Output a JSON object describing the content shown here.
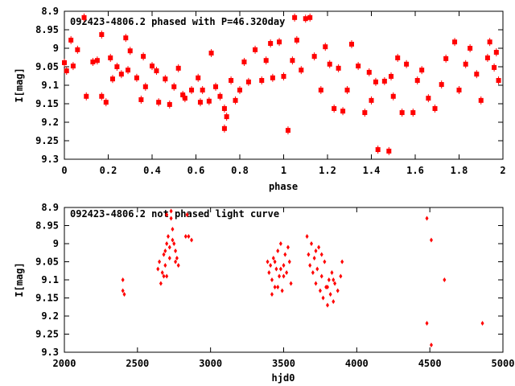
{
  "colors": {
    "points": "#ff0000",
    "axes": "#000000"
  },
  "chart_data": [
    {
      "type": "scatter",
      "title": "092423-4806.2 phased with P=46.320day",
      "xlabel": "phase",
      "ylabel": "I[mag]",
      "xlim": [
        0,
        2
      ],
      "ylim": [
        9.3,
        8.9
      ],
      "y_inverted": true,
      "xticks": [
        "0",
        "0.2",
        "0.4",
        "0.6",
        "0.8",
        "1",
        "1.2",
        "1.4",
        "1.6",
        "1.8",
        "2"
      ],
      "yticks": [
        "8.9",
        "8.95",
        "9",
        "9.05",
        "9.1",
        "9.15",
        "9.2",
        "9.25",
        "9.3"
      ],
      "points": [
        [
          0.0,
          9.039
        ],
        [
          0.01,
          9.061
        ],
        [
          0.03,
          8.978
        ],
        [
          0.04,
          9.048
        ],
        [
          0.06,
          9.004
        ],
        [
          0.09,
          8.917
        ],
        [
          0.1,
          9.13
        ],
        [
          0.13,
          9.037
        ],
        [
          0.15,
          9.033
        ],
        [
          0.17,
          9.13
        ],
        [
          0.17,
          8.963
        ],
        [
          0.19,
          9.146
        ],
        [
          0.21,
          9.026
        ],
        [
          0.22,
          9.083
        ],
        [
          0.24,
          9.05
        ],
        [
          0.26,
          9.07
        ],
        [
          0.28,
          8.972
        ],
        [
          0.29,
          9.059
        ],
        [
          0.3,
          9.007
        ],
        [
          0.33,
          9.08
        ],
        [
          0.35,
          9.139
        ],
        [
          0.36,
          9.022
        ],
        [
          0.37,
          9.104
        ],
        [
          0.4,
          9.048
        ],
        [
          0.42,
          9.061
        ],
        [
          0.43,
          9.146
        ],
        [
          0.46,
          9.083
        ],
        [
          0.48,
          9.152
        ],
        [
          0.5,
          9.104
        ],
        [
          0.52,
          9.054
        ],
        [
          0.54,
          9.126
        ],
        [
          0.55,
          9.135
        ],
        [
          0.58,
          9.113
        ],
        [
          0.61,
          9.08
        ],
        [
          0.62,
          9.146
        ],
        [
          0.63,
          9.113
        ],
        [
          0.66,
          9.143
        ],
        [
          0.67,
          9.013
        ],
        [
          0.69,
          9.104
        ],
        [
          0.71,
          9.13
        ],
        [
          0.73,
          9.163
        ],
        [
          0.73,
          9.217
        ],
        [
          0.74,
          9.185
        ],
        [
          0.76,
          9.087
        ],
        [
          0.78,
          9.141
        ],
        [
          0.8,
          9.113
        ],
        [
          0.82,
          9.037
        ],
        [
          0.84,
          9.091
        ],
        [
          0.87,
          9.004
        ],
        [
          0.9,
          9.087
        ],
        [
          0.92,
          9.033
        ],
        [
          0.94,
          8.987
        ],
        [
          0.95,
          9.08
        ],
        [
          0.98,
          8.983
        ],
        [
          1.0,
          9.076
        ],
        [
          1.02,
          9.222
        ],
        [
          1.04,
          9.033
        ],
        [
          1.05,
          8.917
        ],
        [
          1.06,
          8.978
        ],
        [
          1.08,
          9.059
        ],
        [
          1.1,
          8.92
        ],
        [
          1.12,
          8.917
        ],
        [
          1.14,
          9.022
        ],
        [
          1.17,
          9.113
        ],
        [
          1.19,
          8.996
        ],
        [
          1.21,
          9.043
        ],
        [
          1.23,
          9.163
        ],
        [
          1.25,
          9.054
        ],
        [
          1.27,
          9.17
        ],
        [
          1.29,
          9.113
        ],
        [
          1.31,
          8.989
        ],
        [
          1.34,
          9.048
        ],
        [
          1.37,
          9.174
        ],
        [
          1.39,
          9.065
        ],
        [
          1.4,
          9.141
        ],
        [
          1.42,
          9.091
        ],
        [
          1.43,
          9.274
        ],
        [
          1.46,
          9.089
        ],
        [
          1.48,
          9.278
        ],
        [
          1.49,
          9.076
        ],
        [
          1.5,
          9.13
        ],
        [
          1.52,
          9.026
        ],
        [
          1.54,
          9.174
        ],
        [
          1.56,
          9.043
        ],
        [
          1.59,
          9.174
        ],
        [
          1.61,
          9.087
        ],
        [
          1.63,
          9.059
        ],
        [
          1.66,
          9.135
        ],
        [
          1.69,
          9.163
        ],
        [
          1.72,
          9.098
        ],
        [
          1.74,
          9.028
        ],
        [
          1.78,
          8.983
        ],
        [
          1.8,
          9.113
        ],
        [
          1.83,
          9.043
        ],
        [
          1.85,
          9.0
        ],
        [
          1.88,
          9.07
        ],
        [
          1.9,
          9.141
        ],
        [
          1.93,
          9.026
        ],
        [
          1.94,
          8.983
        ],
        [
          1.96,
          9.052
        ],
        [
          1.97,
          9.011
        ],
        [
          1.98,
          9.087
        ]
      ]
    },
    {
      "type": "scatter",
      "title": "092423-4806.2 not phased light curve",
      "xlabel": "hjd0",
      "ylabel": "I[mag]",
      "xlim": [
        2000,
        5000
      ],
      "ylim": [
        9.3,
        8.9
      ],
      "y_inverted": true,
      "xticks": [
        "2000",
        "2500",
        "3000",
        "3500",
        "4000",
        "4500",
        "5000"
      ],
      "yticks": [
        "8.9",
        "8.95",
        "9",
        "9.05",
        "9.1",
        "9.15",
        "9.2",
        "9.25",
        "9.3"
      ],
      "points": [
        [
          2400,
          9.1
        ],
        [
          2400,
          9.13
        ],
        [
          2410,
          9.14
        ],
        [
          2640,
          9.07
        ],
        [
          2650,
          9.05
        ],
        [
          2660,
          9.11
        ],
        [
          2670,
          9.08
        ],
        [
          2680,
          9.03
        ],
        [
          2690,
          9.06
        ],
        [
          2700,
          9.0
        ],
        [
          2710,
          8.98
        ],
        [
          2720,
          9.04
        ],
        [
          2730,
          8.93
        ],
        [
          2740,
          8.96
        ],
        [
          2750,
          9.0
        ],
        [
          2760,
          9.02
        ],
        [
          2770,
          9.04
        ],
        [
          2780,
          9.06
        ],
        [
          2700,
          9.09
        ],
        [
          2680,
          9.09
        ],
        [
          2720,
          9.01
        ],
        [
          2740,
          8.99
        ],
        [
          2760,
          9.05
        ],
        [
          2830,
          8.98
        ],
        [
          2850,
          8.98
        ],
        [
          2870,
          8.99
        ],
        [
          2840,
          8.92
        ],
        [
          2700,
          8.92
        ],
        [
          2730,
          8.91
        ],
        [
          2690,
          9.02
        ],
        [
          3390,
          9.05
        ],
        [
          3400,
          9.08
        ],
        [
          3410,
          9.06
        ],
        [
          3420,
          9.1
        ],
        [
          3430,
          9.04
        ],
        [
          3440,
          9.12
        ],
        [
          3450,
          9.07
        ],
        [
          3460,
          9.02
        ],
        [
          3470,
          9.09
        ],
        [
          3480,
          9.0
        ],
        [
          3490,
          9.13
        ],
        [
          3500,
          9.06
        ],
        [
          3510,
          9.03
        ],
        [
          3520,
          9.08
        ],
        [
          3530,
          9.01
        ],
        [
          3540,
          9.05
        ],
        [
          3550,
          9.11
        ],
        [
          3420,
          9.14
        ],
        [
          3460,
          9.12
        ],
        [
          3500,
          9.09
        ],
        [
          3440,
          9.05
        ],
        [
          3480,
          9.07
        ],
        [
          3660,
          8.98
        ],
        [
          3670,
          9.03
        ],
        [
          3680,
          9.06
        ],
        [
          3690,
          9.0
        ],
        [
          3700,
          9.08
        ],
        [
          3710,
          9.04
        ],
        [
          3720,
          9.11
        ],
        [
          3730,
          9.07
        ],
        [
          3740,
          9.01
        ],
        [
          3750,
          9.13
        ],
        [
          3760,
          9.09
        ],
        [
          3770,
          9.15
        ],
        [
          3780,
          9.05
        ],
        [
          3790,
          9.12
        ],
        [
          3800,
          9.17
        ],
        [
          3810,
          9.1
        ],
        [
          3820,
          9.14
        ],
        [
          3830,
          9.08
        ],
        [
          3840,
          9.16
        ],
        [
          3850,
          9.11
        ],
        [
          3870,
          9.13
        ],
        [
          3890,
          9.09
        ],
        [
          3900,
          9.05
        ],
        [
          3760,
          9.03
        ],
        [
          3720,
          9.02
        ],
        [
          3800,
          9.12
        ],
        [
          3840,
          9.1
        ],
        [
          4480,
          8.93
        ],
        [
          4510,
          8.99
        ],
        [
          4600,
          9.1
        ],
        [
          4480,
          9.22
        ],
        [
          4510,
          9.28
        ],
        [
          4860,
          9.22
        ]
      ]
    }
  ]
}
